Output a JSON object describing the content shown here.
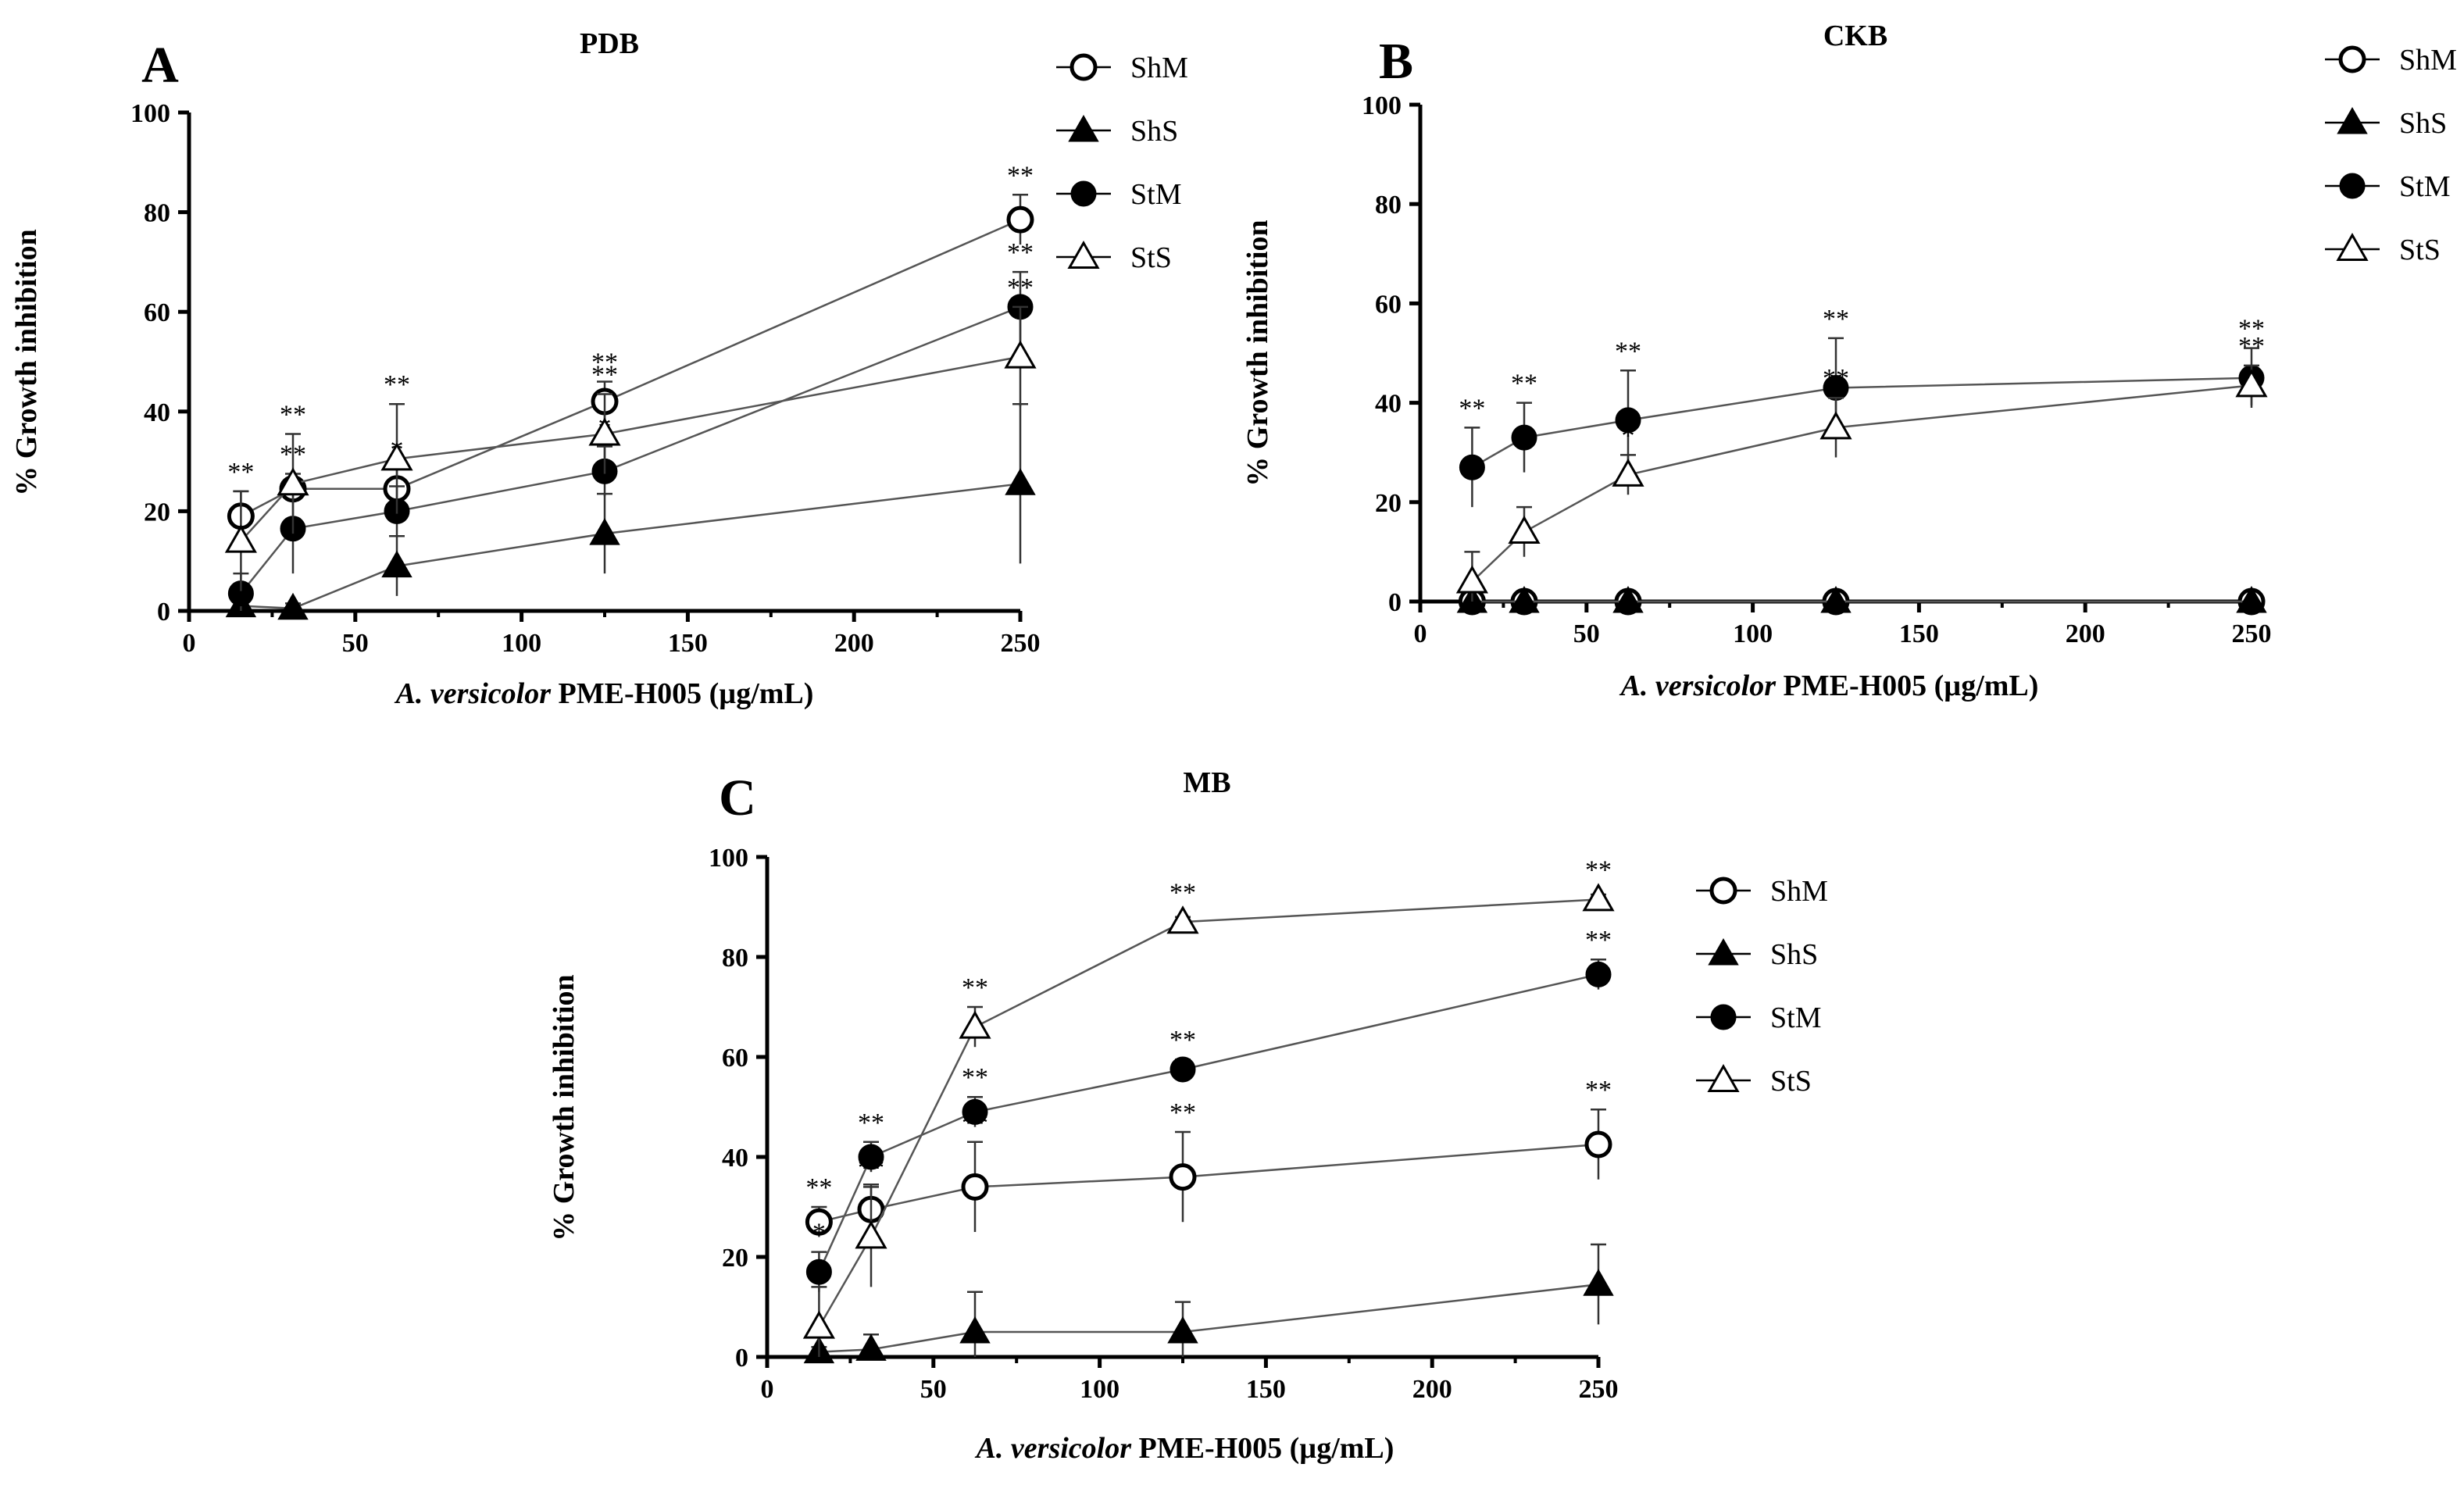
{
  "chart_data": [
    {
      "panel": "A",
      "type": "line",
      "title": "PDB",
      "xlabel_italic": "A. versicolor",
      "xlabel_rest": " PME-H005 (µg/mL)",
      "ylabel": "% Growth inhibition",
      "xlim": [
        0,
        250
      ],
      "ylim": [
        0,
        100
      ],
      "xticks": [
        0,
        50,
        100,
        150,
        200,
        250
      ],
      "yticks": [
        0,
        20,
        40,
        60,
        80,
        100
      ],
      "x": [
        15.6,
        31.25,
        62.5,
        125,
        250
      ],
      "series": [
        {
          "name": "ShM",
          "marker": "open-circle",
          "values": [
            19,
            24.5,
            24.5,
            42,
            78.5
          ],
          "errors": [
            5,
            3,
            4,
            4,
            5
          ],
          "stars": [
            "**",
            "**",
            "*",
            "**",
            "**"
          ]
        },
        {
          "name": "ShS",
          "marker": "filled-triangle",
          "values": [
            1,
            0.5,
            9,
            15.5,
            25.5
          ],
          "errors": [
            1,
            1,
            6,
            8,
            16
          ],
          "stars": [
            "",
            "",
            "",
            "",
            ""
          ]
        },
        {
          "name": "StM",
          "marker": "filled-circle",
          "values": [
            3.5,
            16.5,
            20,
            28,
            61
          ],
          "errors": [
            4,
            9,
            5,
            5,
            7
          ],
          "stars": [
            "",
            "",
            "",
            "*",
            "**"
          ]
        },
        {
          "name": "StS",
          "marker": "open-triangle",
          "values": [
            14,
            25.5,
            30.5,
            35.5,
            51
          ],
          "errors": [
            10,
            10,
            11,
            8,
            10
          ],
          "stars": [
            "",
            "**",
            "**",
            "**",
            "**"
          ]
        }
      ]
    },
    {
      "panel": "B",
      "type": "line",
      "title": "CKB",
      "xlabel_italic": "A. versicolor",
      "xlabel_rest": " PME-H005 (µg/mL)",
      "ylabel": "% Growth inhibition",
      "xlim": [
        0,
        250
      ],
      "ylim": [
        0,
        100
      ],
      "xticks": [
        0,
        50,
        100,
        150,
        200,
        250
      ],
      "yticks": [
        0,
        20,
        40,
        60,
        80,
        100
      ],
      "x": [
        15.6,
        31.25,
        62.5,
        125,
        250
      ],
      "series": [
        {
          "name": "ShM",
          "marker": "open-circle",
          "values": [
            0,
            0,
            0,
            0,
            0
          ],
          "errors": [
            0,
            0,
            0,
            0,
            0
          ],
          "stars": [
            "",
            "",
            "",
            "",
            ""
          ]
        },
        {
          "name": "ShS",
          "marker": "filled-triangle",
          "values": [
            0,
            0,
            0,
            0,
            0
          ],
          "errors": [
            0,
            0,
            0,
            0,
            0
          ],
          "stars": [
            "",
            "",
            "",
            "",
            ""
          ]
        },
        {
          "name": "StM",
          "marker": "filled-circle",
          "values": [
            27,
            33,
            36.5,
            43,
            45
          ],
          "errors": [
            8,
            7,
            10,
            10,
            6
          ],
          "stars": [
            "**",
            "**",
            "**",
            "**",
            "**"
          ]
        },
        {
          "name": "StS",
          "marker": "open-triangle",
          "values": [
            4,
            14,
            25.5,
            35,
            43.5
          ],
          "errors": [
            6,
            5,
            4,
            6,
            4
          ],
          "stars": [
            "",
            "",
            "*",
            "**",
            "**"
          ]
        }
      ]
    },
    {
      "panel": "C",
      "type": "line",
      "title": "MB",
      "xlabel_italic": "A. versicolor",
      "xlabel_rest": " PME-H005 (µg/mL)",
      "ylabel": "% Growth inhibition",
      "xlim": [
        0,
        250
      ],
      "ylim": [
        0,
        100
      ],
      "xticks": [
        0,
        50,
        100,
        150,
        200,
        250
      ],
      "yticks": [
        0,
        20,
        40,
        60,
        80,
        100
      ],
      "x": [
        15.6,
        31.25,
        62.5,
        125,
        250
      ],
      "series": [
        {
          "name": "ShM",
          "marker": "open-circle",
          "values": [
            27,
            29.5,
            34,
            36,
            42.5
          ],
          "errors": [
            3,
            5,
            9,
            9,
            7
          ],
          "stars": [
            "**",
            "**",
            "**",
            "**",
            "**"
          ]
        },
        {
          "name": "ShS",
          "marker": "filled-triangle",
          "values": [
            1,
            1.5,
            5,
            5,
            14.5
          ],
          "errors": [
            1,
            3,
            8,
            6,
            8
          ],
          "stars": [
            "",
            "",
            "",
            "",
            ""
          ]
        },
        {
          "name": "StM",
          "marker": "filled-circle",
          "values": [
            17,
            40,
            49,
            57.5,
            76.5
          ],
          "errors": [
            4,
            3,
            3,
            2,
            3
          ],
          "stars": [
            "*",
            "**",
            "**",
            "**",
            "**"
          ]
        },
        {
          "name": "StS",
          "marker": "open-triangle",
          "values": [
            6,
            24,
            66,
            87,
            91.5
          ],
          "errors": [
            8,
            10,
            4,
            1,
            1
          ],
          "stars": [
            "",
            "**",
            "**",
            "**",
            "**"
          ]
        }
      ]
    }
  ]
}
